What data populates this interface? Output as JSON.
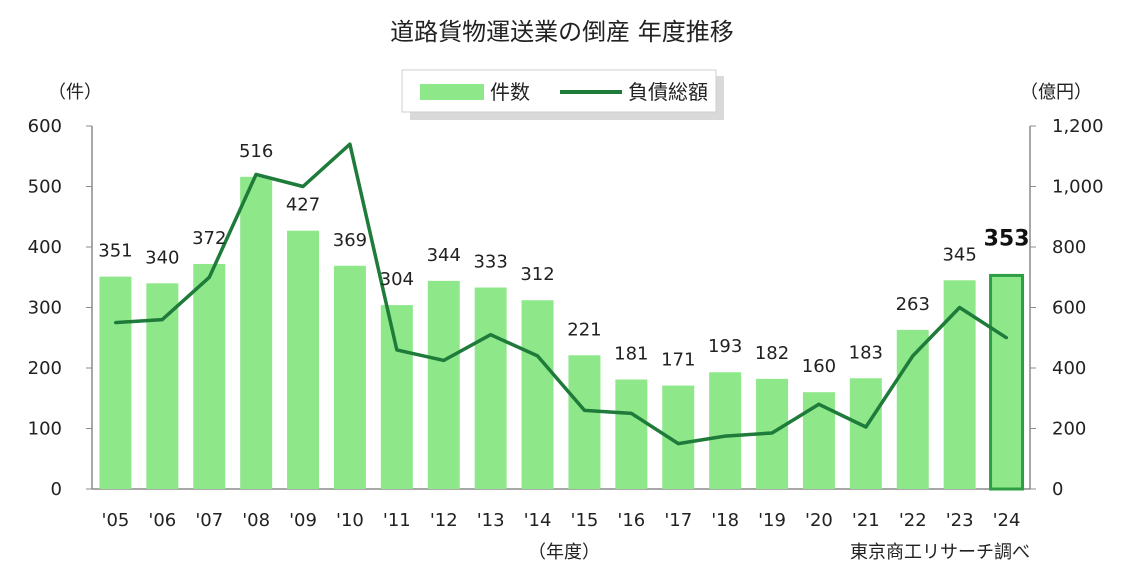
{
  "chart_data": {
    "type": "bar",
    "title": "道路貨物運送業の倒産 年度推移",
    "left_unit": "（件）",
    "right_unit": "（億円）",
    "x_axis_label": "（年度）",
    "source": "東京商工リサーチ調べ",
    "categories": [
      "'05",
      "'06",
      "'07",
      "'08",
      "'09",
      "'10",
      "'11",
      "'12",
      "'13",
      "'14",
      "'15",
      "'16",
      "'17",
      "'18",
      "'19",
      "'20",
      "'21",
      "'22",
      "'23",
      "'24"
    ],
    "series": [
      {
        "name": "件数",
        "type": "bar",
        "axis": "left",
        "color": "#8ee88a",
        "values": [
          351,
          340,
          372,
          516,
          427,
          369,
          304,
          344,
          333,
          312,
          221,
          181,
          171,
          193,
          182,
          160,
          183,
          263,
          345,
          353
        ],
        "highlight_last": true,
        "highlight_color": "#2e9e44"
      },
      {
        "name": "負債総額",
        "type": "line",
        "axis": "right",
        "color": "#1e7b3a",
        "values": [
          550,
          560,
          700,
          1040,
          1000,
          1140,
          460,
          425,
          510,
          440,
          260,
          250,
          150,
          175,
          185,
          280,
          205,
          440,
          600,
          500
        ]
      }
    ],
    "y_left": {
      "min": 0,
      "max": 600,
      "ticks": [
        "0",
        "100",
        "200",
        "300",
        "400",
        "500",
        "600"
      ]
    },
    "y_right": {
      "min": 0,
      "max": 1200,
      "ticks": [
        "0",
        "200",
        "400",
        "600",
        "800",
        "1,000",
        "1,200"
      ]
    },
    "grid": false,
    "legend_position": "top-center"
  }
}
